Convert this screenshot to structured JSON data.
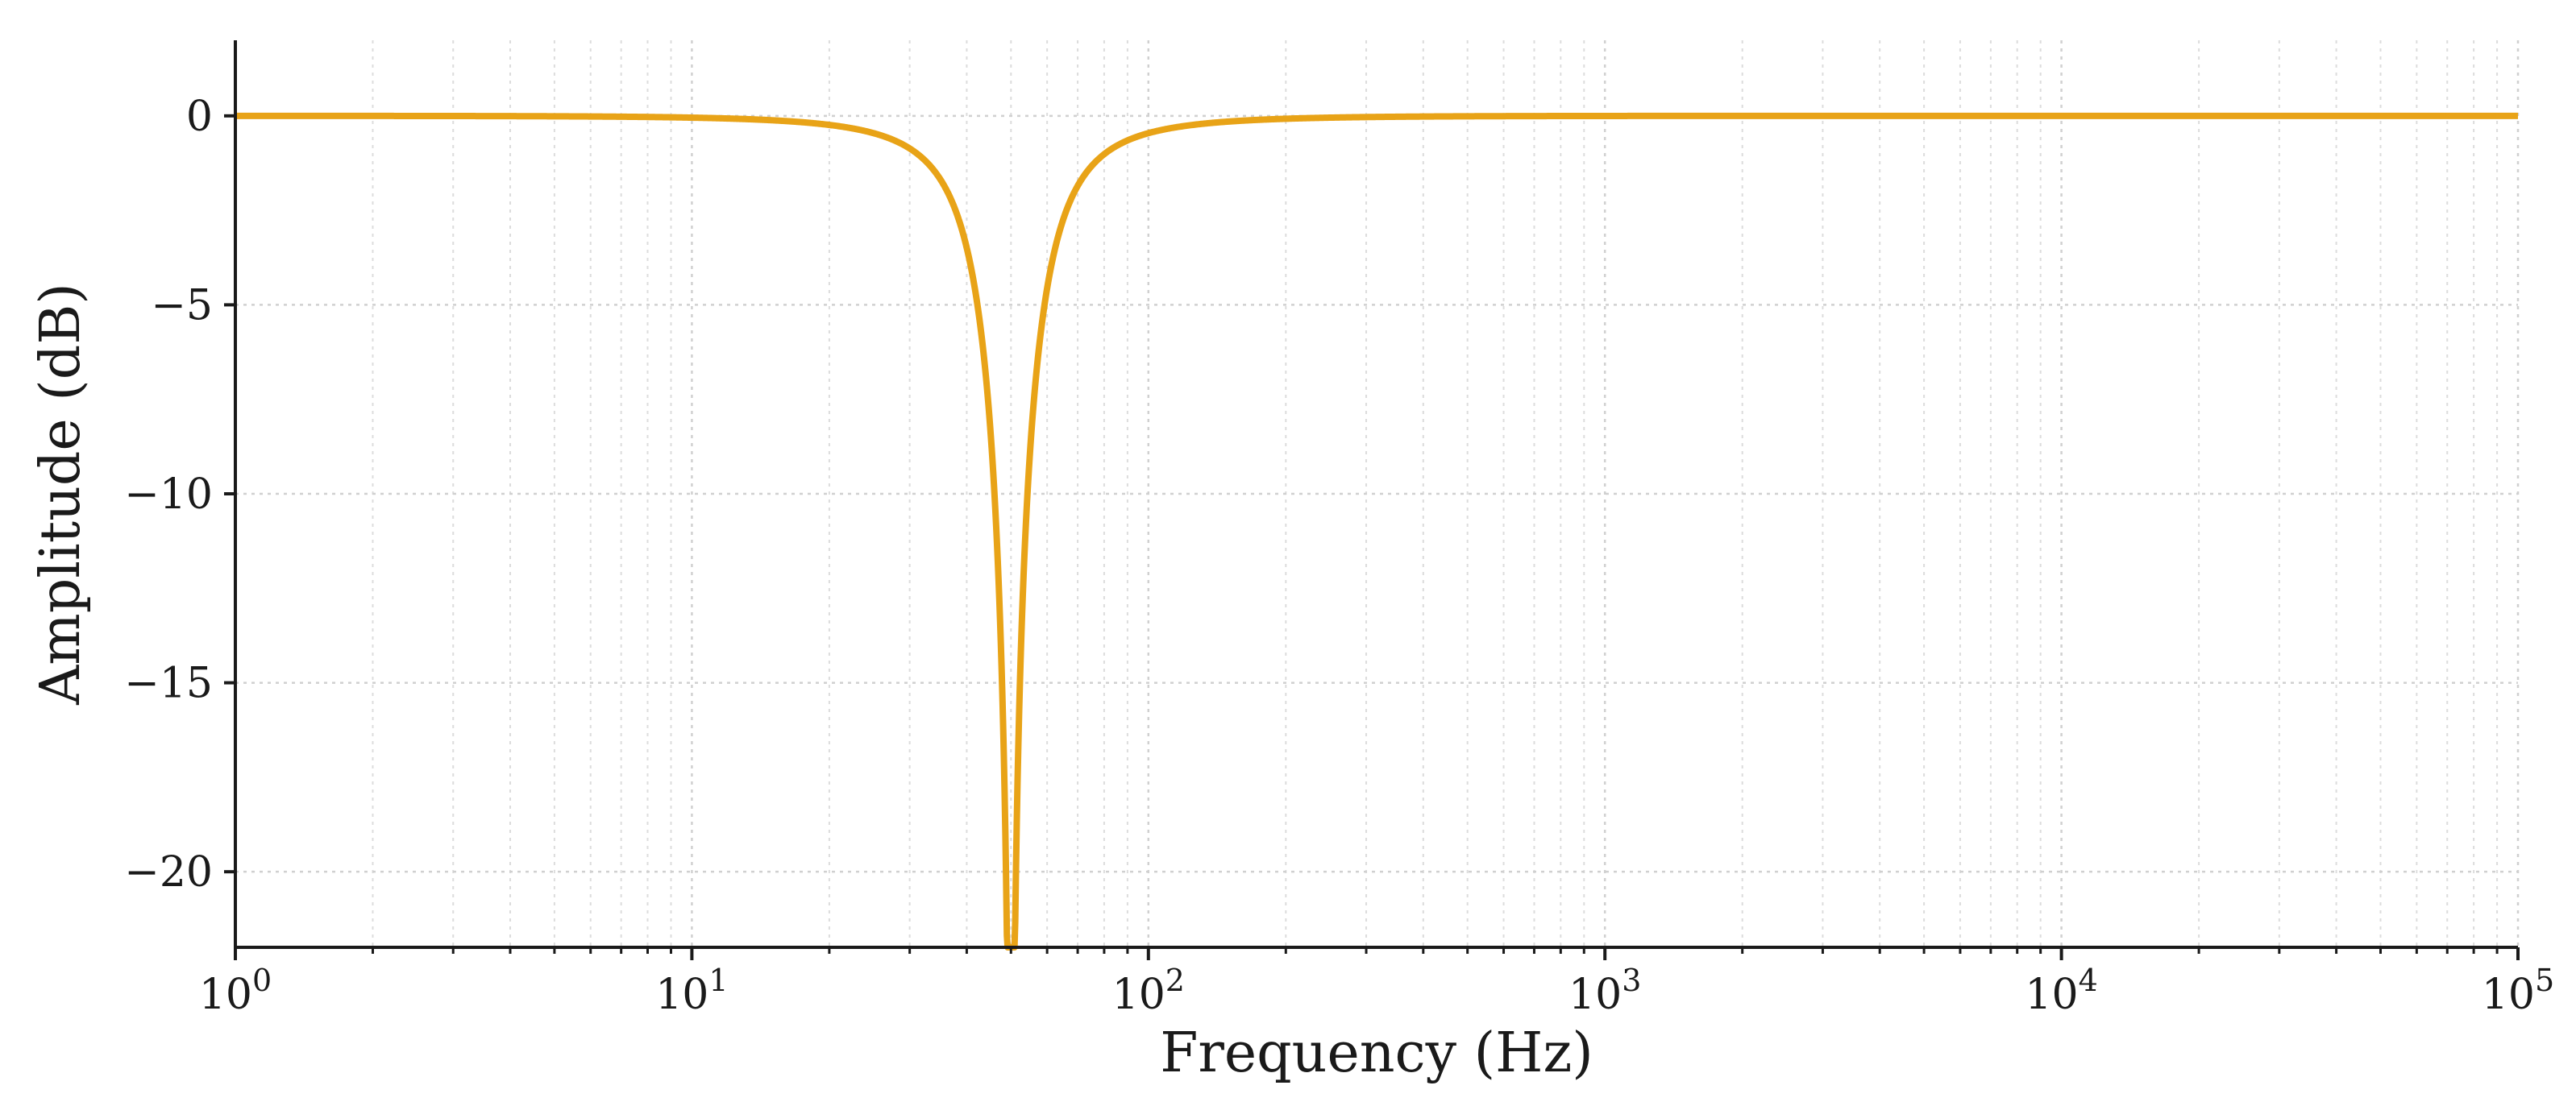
{
  "chart_data": {
    "type": "line",
    "title": "",
    "xlabel": "Frequency (Hz)",
    "ylabel": "Amplitude (dB)",
    "xscale": "log",
    "xlim": [
      1,
      100000
    ],
    "ylim": [
      -22,
      2
    ],
    "grid": true,
    "legend": "none",
    "x_ticks": [
      {
        "value": 1,
        "base": "10",
        "exp": "0"
      },
      {
        "value": 10,
        "base": "10",
        "exp": "1"
      },
      {
        "value": 100,
        "base": "10",
        "exp": "2"
      },
      {
        "value": 1000,
        "base": "10",
        "exp": "3"
      },
      {
        "value": 10000,
        "base": "10",
        "exp": "4"
      },
      {
        "value": 100000,
        "base": "10",
        "exp": "5"
      }
    ],
    "y_ticks": [
      {
        "value": 0,
        "label": "0"
      },
      {
        "value": -5,
        "label": "−5"
      },
      {
        "value": -10,
        "label": "−10"
      },
      {
        "value": -15,
        "label": "−15"
      },
      {
        "value": -20,
        "label": "−20"
      }
    ],
    "series": [
      {
        "color": "#E8A317",
        "notch_center_hz": 50,
        "quality_factor": 2,
        "x": [
          1,
          10,
          20,
          30,
          35,
          40,
          43,
          45,
          47,
          48,
          49,
          49.5,
          50,
          50.5,
          51,
          52,
          53,
          55,
          58,
          62,
          70,
          80,
          100,
          200,
          1000,
          10000,
          100000
        ],
        "y": [
          0.0,
          0.0,
          -0.05,
          -0.2,
          -0.4,
          -0.9,
          -1.6,
          -2.4,
          -4.0,
          -5.5,
          -8.2,
          -11.0,
          -22.0,
          -11.0,
          -8.2,
          -5.5,
          -4.2,
          -2.6,
          -1.5,
          -0.9,
          -0.45,
          -0.25,
          -0.12,
          -0.02,
          0.0,
          0.0,
          0.0
        ]
      }
    ]
  }
}
